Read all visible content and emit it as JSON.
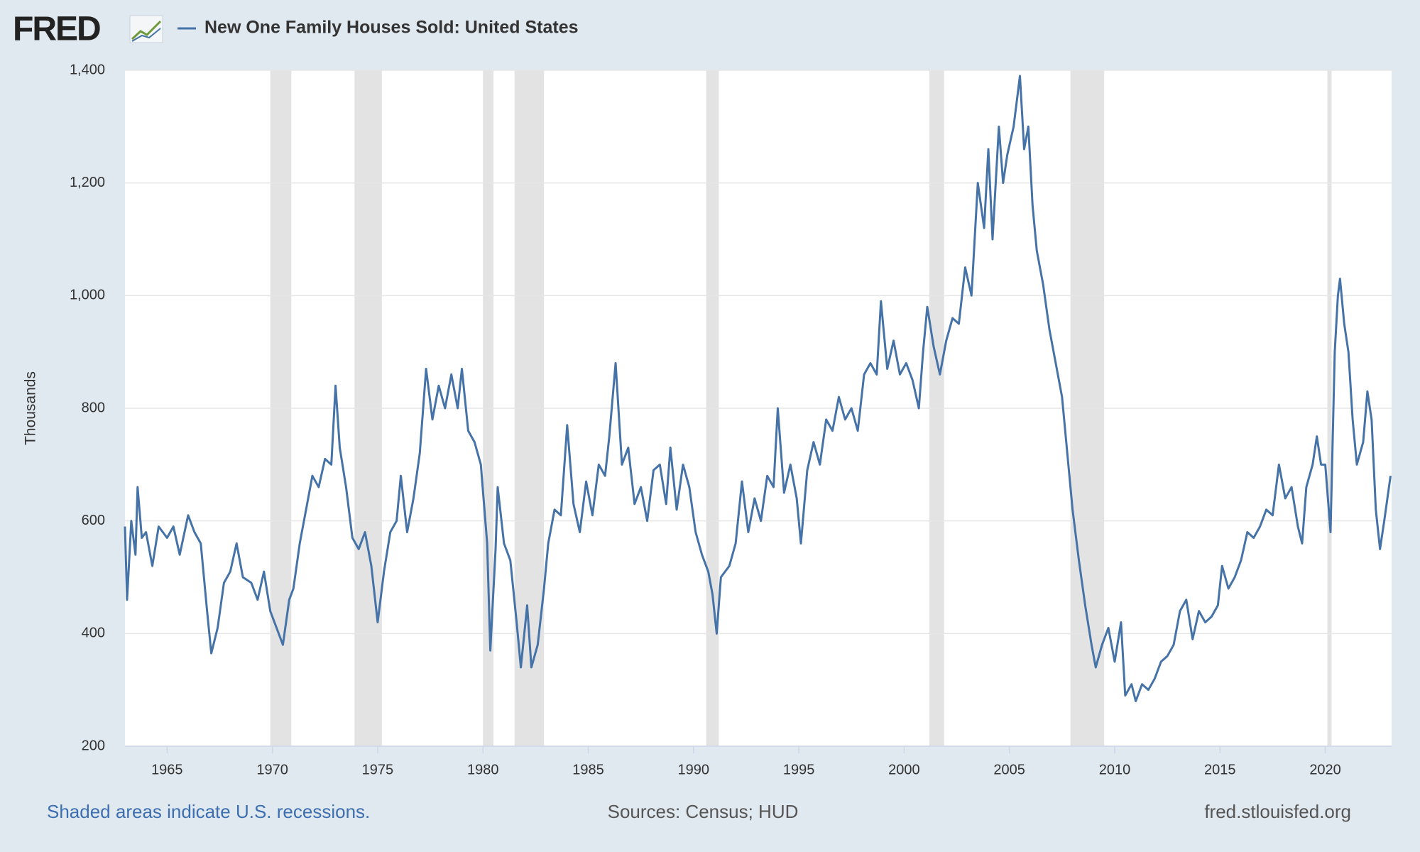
{
  "logo": "FRED",
  "chart_data": {
    "type": "line",
    "y_label": "Thousands",
    "footer_note": "Shaded areas indicate U.S. recessions.",
    "sources": "Sources: Census; HUD",
    "site": "fred.stlouisfed.org",
    "xlim": [
      1963,
      2023.15
    ],
    "xticks": [
      1965,
      1970,
      1975,
      1980,
      1985,
      1990,
      1995,
      2000,
      2005,
      2010,
      2015,
      2020
    ],
    "ylim": [
      200,
      1400
    ],
    "yticks": [
      200,
      400,
      600,
      800,
      {
        "value": 1000,
        "label": "1,000"
      },
      {
        "value": 1200,
        "label": "1,200"
      },
      {
        "value": 1400,
        "label": "1,400"
      }
    ],
    "grid": true,
    "recessions": [
      [
        1969.9,
        1970.9
      ],
      [
        1973.9,
        1975.2
      ],
      [
        1980.0,
        1980.5
      ],
      [
        1981.5,
        1982.9
      ],
      [
        1990.6,
        1991.2
      ],
      [
        2001.2,
        2001.9
      ],
      [
        2007.9,
        2009.5
      ],
      [
        2020.1,
        2020.3
      ]
    ],
    "recession_color": "#e3e3e3",
    "x": [
      1963.0,
      1963.1,
      1963.3,
      1963.5,
      1963.6,
      1963.8,
      1964.0,
      1964.3,
      1964.6,
      1965.0,
      1965.3,
      1965.6,
      1966.0,
      1966.3,
      1966.6,
      1966.9,
      1967.1,
      1967.4,
      1967.7,
      1968.0,
      1968.3,
      1968.6,
      1969.0,
      1969.3,
      1969.6,
      1969.9,
      1970.2,
      1970.5,
      1970.8,
      1971.0,
      1971.3,
      1971.6,
      1971.9,
      1972.2,
      1972.5,
      1972.8,
      1973.0,
      1973.2,
      1973.5,
      1973.8,
      1974.1,
      1974.4,
      1974.7,
      1975.0,
      1975.3,
      1975.6,
      1975.9,
      1976.1,
      1976.4,
      1976.7,
      1977.0,
      1977.3,
      1977.6,
      1977.9,
      1978.2,
      1978.5,
      1978.8,
      1979.0,
      1979.3,
      1979.6,
      1979.9,
      1980.2,
      1980.35,
      1980.6,
      1980.7,
      1981.0,
      1981.3,
      1981.6,
      1981.8,
      1982.1,
      1982.3,
      1982.6,
      1982.9,
      1983.1,
      1983.4,
      1983.7,
      1984.0,
      1984.3,
      1984.6,
      1984.9,
      1985.2,
      1985.5,
      1985.8,
      1986.0,
      1986.3,
      1986.6,
      1986.9,
      1987.2,
      1987.5,
      1987.8,
      1988.1,
      1988.4,
      1988.7,
      1988.9,
      1989.2,
      1989.5,
      1989.8,
      1990.1,
      1990.4,
      1990.7,
      1990.9,
      1991.1,
      1991.3,
      1991.7,
      1992.0,
      1992.3,
      1992.6,
      1992.9,
      1993.2,
      1993.5,
      1993.8,
      1994.0,
      1994.3,
      1994.6,
      1994.9,
      1995.1,
      1995.4,
      1995.7,
      1996.0,
      1996.3,
      1996.6,
      1996.9,
      1997.2,
      1997.5,
      1997.8,
      1998.1,
      1998.4,
      1998.7,
      1998.9,
      1999.2,
      1999.5,
      1999.8,
      2000.1,
      2000.4,
      2000.7,
      2000.9,
      2001.1,
      2001.4,
      2001.7,
      2002.0,
      2002.3,
      2002.6,
      2002.9,
      2003.2,
      2003.5,
      2003.8,
      2004.0,
      2004.2,
      2004.5,
      2004.7,
      2004.9,
      2005.2,
      2005.5,
      2005.7,
      2005.9,
      2006.1,
      2006.3,
      2006.6,
      2006.9,
      2007.2,
      2007.5,
      2007.8,
      2008.0,
      2008.3,
      2008.6,
      2008.9,
      2009.1,
      2009.4,
      2009.7,
      2010.0,
      2010.3,
      2010.5,
      2010.8,
      2011.0,
      2011.3,
      2011.6,
      2011.9,
      2012.2,
      2012.5,
      2012.8,
      2013.1,
      2013.4,
      2013.7,
      2014.0,
      2014.3,
      2014.6,
      2014.9,
      2015.1,
      2015.4,
      2015.7,
      2016.0,
      2016.3,
      2016.6,
      2016.9,
      2017.2,
      2017.5,
      2017.8,
      2018.1,
      2018.4,
      2018.7,
      2018.9,
      2019.1,
      2019.4,
      2019.6,
      2019.8,
      2020.0,
      2020.25,
      2020.45,
      2020.6,
      2020.7,
      2020.9,
      2021.1,
      2021.3,
      2021.5,
      2021.8,
      2022.0,
      2022.2,
      2022.4,
      2022.6,
      2022.8,
      2022.95,
      2023.1
    ],
    "series": [
      {
        "name": "New One Family Houses Sold: United States",
        "color": "#4572a7",
        "values": [
          590,
          460,
          600,
          540,
          660,
          570,
          580,
          520,
          590,
          570,
          590,
          540,
          610,
          580,
          560,
          440,
          365,
          410,
          490,
          510,
          560,
          500,
          490,
          460,
          510,
          440,
          410,
          380,
          460,
          480,
          560,
          620,
          680,
          660,
          710,
          700,
          840,
          730,
          660,
          570,
          550,
          580,
          520,
          420,
          510,
          580,
          600,
          680,
          580,
          640,
          720,
          870,
          780,
          840,
          800,
          860,
          800,
          870,
          760,
          740,
          700,
          560,
          370,
          550,
          660,
          560,
          530,
          420,
          340,
          450,
          340,
          380,
          480,
          560,
          620,
          610,
          770,
          630,
          580,
          670,
          610,
          700,
          680,
          750,
          880,
          700,
          730,
          630,
          660,
          600,
          690,
          700,
          630,
          730,
          620,
          700,
          660,
          580,
          540,
          510,
          470,
          400,
          500,
          520,
          560,
          670,
          580,
          640,
          600,
          680,
          660,
          800,
          650,
          700,
          640,
          560,
          690,
          740,
          700,
          780,
          760,
          820,
          780,
          800,
          760,
          860,
          880,
          860,
          990,
          870,
          920,
          860,
          880,
          850,
          800,
          900,
          980,
          910,
          860,
          920,
          960,
          950,
          1050,
          1000,
          1200,
          1120,
          1260,
          1100,
          1300,
          1200,
          1250,
          1300,
          1390,
          1260,
          1300,
          1160,
          1080,
          1020,
          940,
          880,
          820,
          700,
          620,
          530,
          450,
          380,
          340,
          380,
          410,
          350,
          420,
          290,
          310,
          280,
          310,
          300,
          320,
          350,
          360,
          380,
          440,
          460,
          390,
          440,
          420,
          430,
          450,
          520,
          480,
          500,
          530,
          580,
          570,
          590,
          620,
          610,
          700,
          640,
          660,
          590,
          560,
          660,
          700,
          750,
          700,
          700,
          580,
          900,
          1000,
          1030,
          950,
          900,
          780,
          700,
          740,
          830,
          780,
          620,
          550,
          600,
          640,
          680
        ]
      }
    ]
  }
}
